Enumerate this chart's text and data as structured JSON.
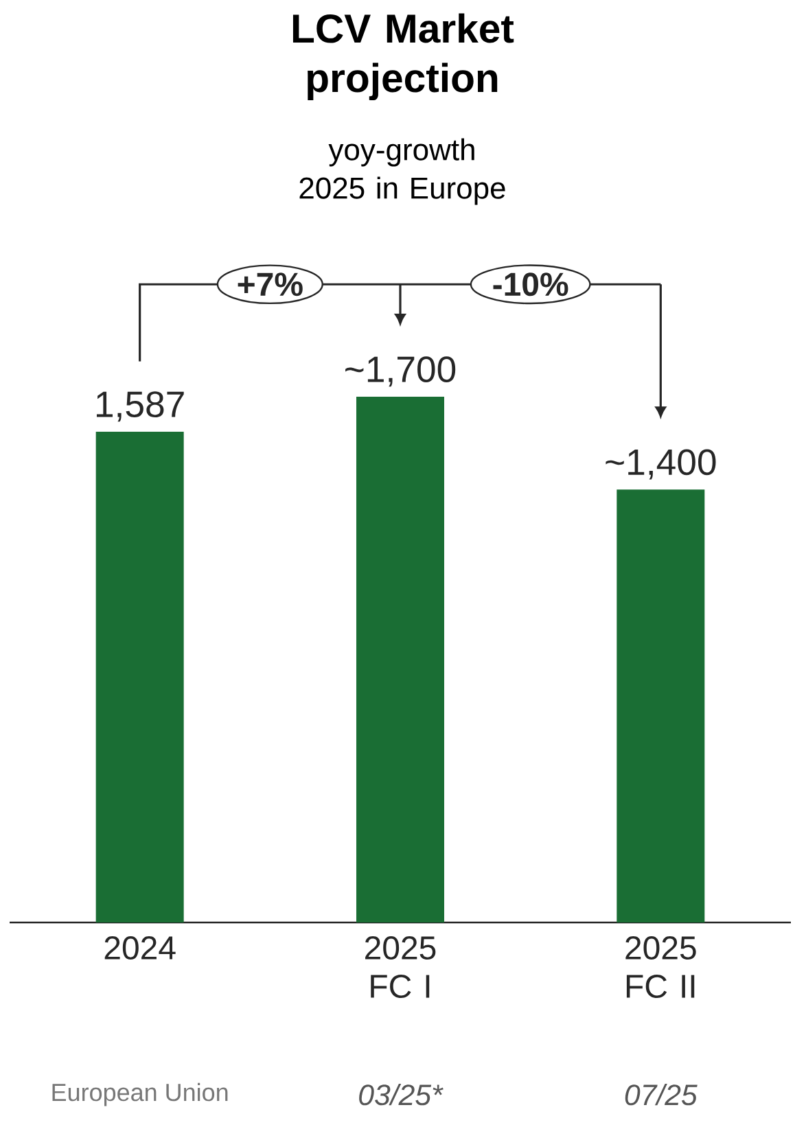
{
  "chart_data": {
    "type": "bar",
    "title": "LCV Market projection",
    "subtitle": "yoy-growth 2025 in Europe",
    "categories": [
      "2024",
      "2025 FC I",
      "2025 FC II"
    ],
    "values": [
      1587,
      1700,
      1400
    ],
    "value_labels": [
      "1,587",
      "~1,700",
      "~1,400"
    ],
    "color": "#1a6e34",
    "annotations": [
      "+7%",
      "-10%",
      "European Union",
      "03/25*",
      "07/25"
    ]
  }
}
